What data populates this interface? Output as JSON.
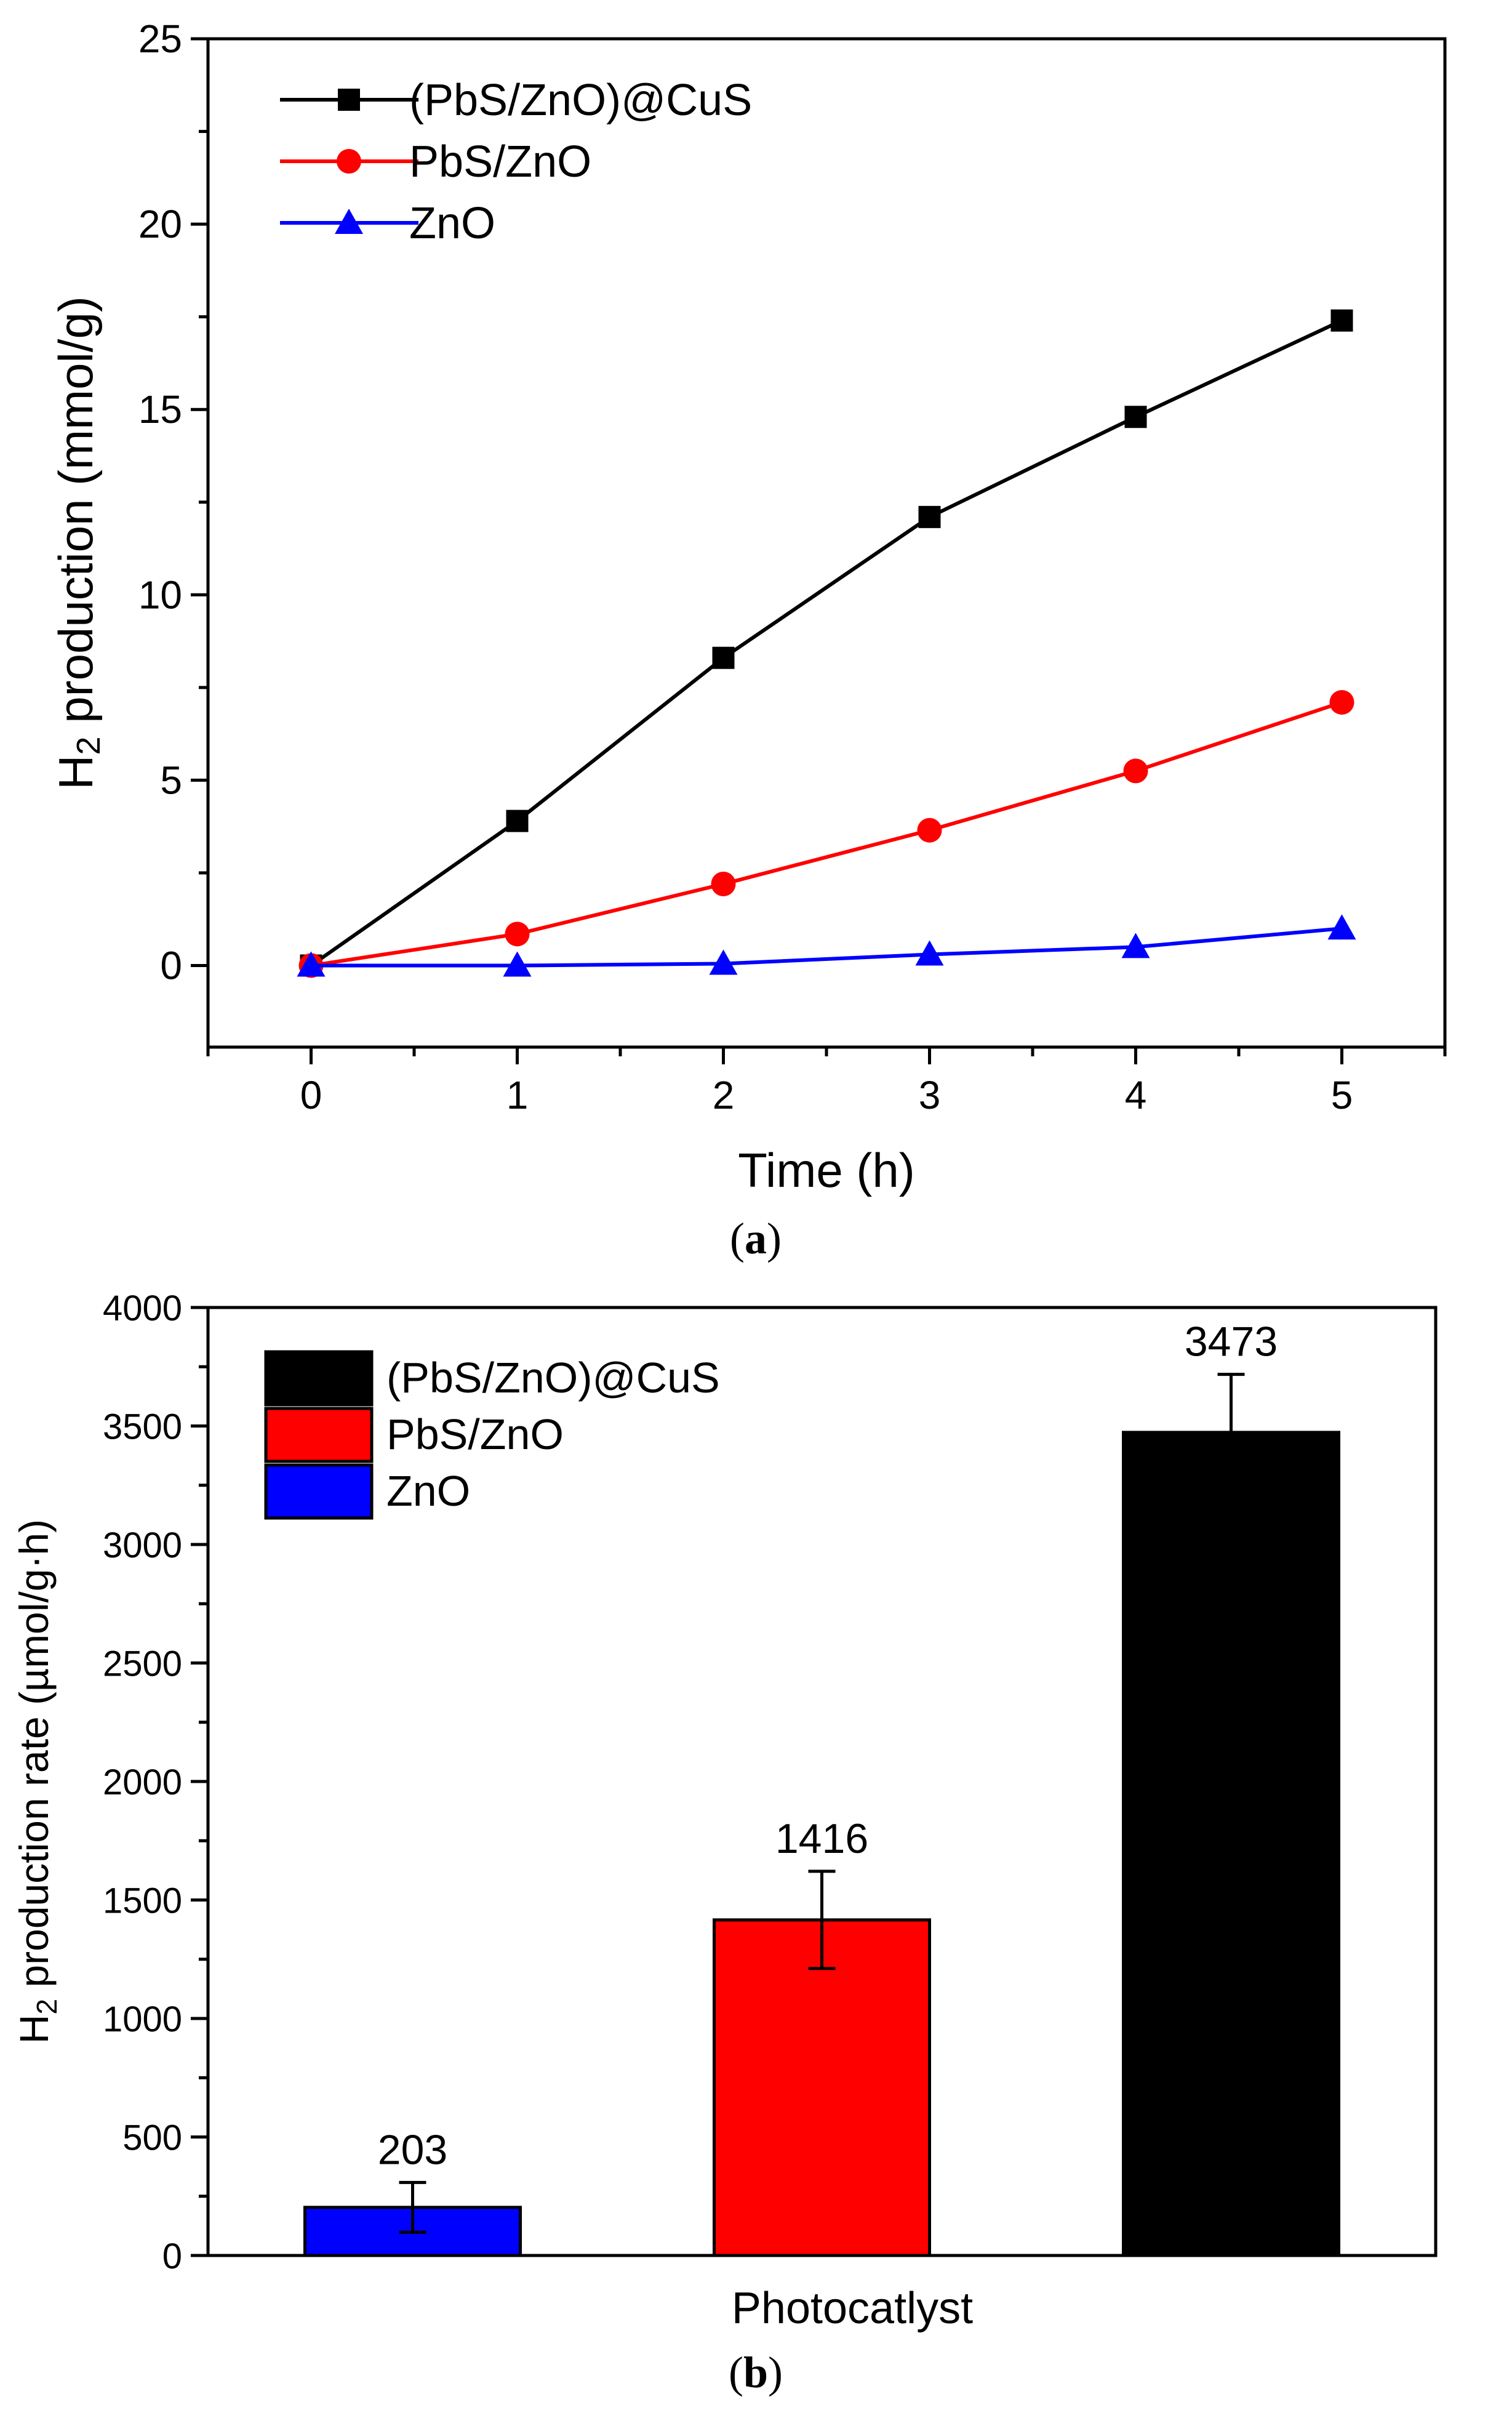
{
  "chart_data": [
    {
      "panel": "(a)",
      "panel_label_open": "(",
      "panel_label_letter": "a",
      "panel_label_close": ")",
      "type": "line",
      "title": "",
      "xlabel": "Time (h)",
      "ylabel_prefix": "H",
      "ylabel_subscript": "2",
      "ylabel_suffix": " production (mmol/g)",
      "xlim": [
        -0.5,
        5.5
      ],
      "ylim": [
        -2.2,
        25
      ],
      "x_ticks": [
        0,
        1,
        2,
        3,
        4,
        5
      ],
      "x_tick_labels": [
        "0",
        "1",
        "2",
        "3",
        "4",
        "5"
      ],
      "y_ticks": [
        0,
        5,
        10,
        15,
        20,
        25
      ],
      "y_tick_labels": [
        "0",
        "5",
        "10",
        "15",
        "20",
        "25"
      ],
      "legend_position": "top-left",
      "grid": false,
      "x": [
        0,
        1,
        2,
        3,
        4,
        5
      ],
      "series": [
        {
          "name": "(PbS/ZnO)@CuS",
          "color": "#000000",
          "marker": "square",
          "values": [
            0,
            3.9,
            8.3,
            12.1,
            14.8,
            17.4
          ]
        },
        {
          "name": "PbS/ZnO",
          "color": "#ff0000",
          "marker": "circle",
          "values": [
            0,
            0.85,
            2.2,
            3.65,
            5.25,
            7.1
          ]
        },
        {
          "name": "ZnO",
          "color": "#0000ff",
          "marker": "triangle",
          "values": [
            0,
            0,
            0.05,
            0.3,
            0.5,
            1.0
          ]
        }
      ]
    },
    {
      "panel": "(b)",
      "panel_label_open": "(",
      "panel_label_letter": "b",
      "panel_label_close": ")",
      "type": "bar",
      "title": "",
      "xlabel": "Photocatlyst",
      "ylabel_prefix": "H",
      "ylabel_subscript": "2",
      "ylabel_suffix": " production rate (µmol/g·h)",
      "ylim": [
        0,
        4000
      ],
      "y_ticks": [
        0,
        500,
        1000,
        1500,
        2000,
        2500,
        3000,
        3500,
        4000
      ],
      "y_tick_labels": [
        "0",
        "500",
        "1000",
        "1500",
        "2000",
        "2500",
        "3000",
        "3500",
        "4000"
      ],
      "legend_position": "top-left",
      "grid": false,
      "legend": [
        {
          "name": "(PbS/ZnO)@CuS",
          "color": "#000000"
        },
        {
          "name": "PbS/ZnO",
          "color": "#ff0000"
        },
        {
          "name": "ZnO",
          "color": "#0000ff"
        }
      ],
      "bars": [
        {
          "name": "ZnO",
          "value": 203,
          "label": "203",
          "error": 105,
          "color": "#0000ff"
        },
        {
          "name": "PbS/ZnO",
          "value": 1416,
          "label": "1416",
          "error": 205,
          "color": "#ff0000"
        },
        {
          "name": "(PbS/ZnO)@CuS",
          "value": 3473,
          "label": "3473",
          "error": 245,
          "color": "#000000"
        }
      ]
    }
  ]
}
